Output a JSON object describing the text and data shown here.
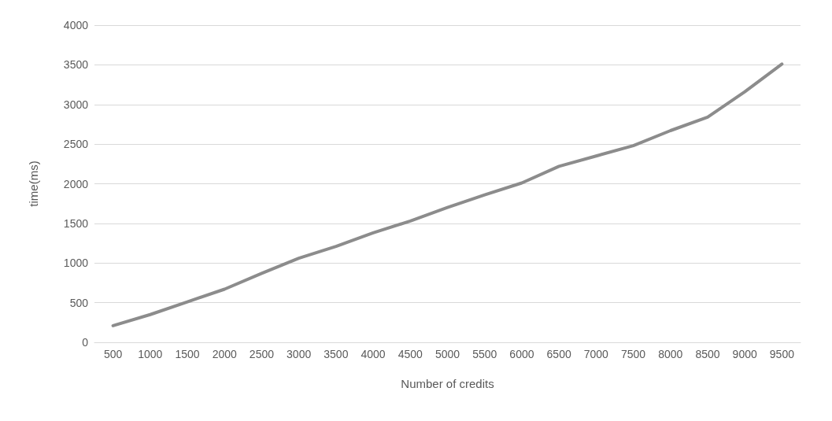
{
  "chart_data": {
    "type": "line",
    "xlabel": "Number of credits",
    "ylabel": "time(ms)",
    "categories": [
      "500",
      "1000",
      "1500",
      "2000",
      "2500",
      "3000",
      "3500",
      "4000",
      "4500",
      "5000",
      "5500",
      "6000",
      "6500",
      "7000",
      "7500",
      "8000",
      "8500",
      "9000",
      "9500"
    ],
    "series": [
      {
        "color": "#8c8c8c",
        "values": [
          210,
          350,
          510,
          670,
          870,
          1060,
          1210,
          1380,
          1530,
          1700,
          1860,
          2010,
          2220,
          2350,
          2480,
          2670,
          2840,
          3160,
          3510
        ]
      }
    ],
    "ylim": [
      0,
      4000
    ],
    "yticks": [
      0,
      500,
      1000,
      1500,
      2000,
      2500,
      3000,
      3500,
      4000
    ],
    "grid": "y",
    "marker": "none",
    "line_style": "solid"
  }
}
